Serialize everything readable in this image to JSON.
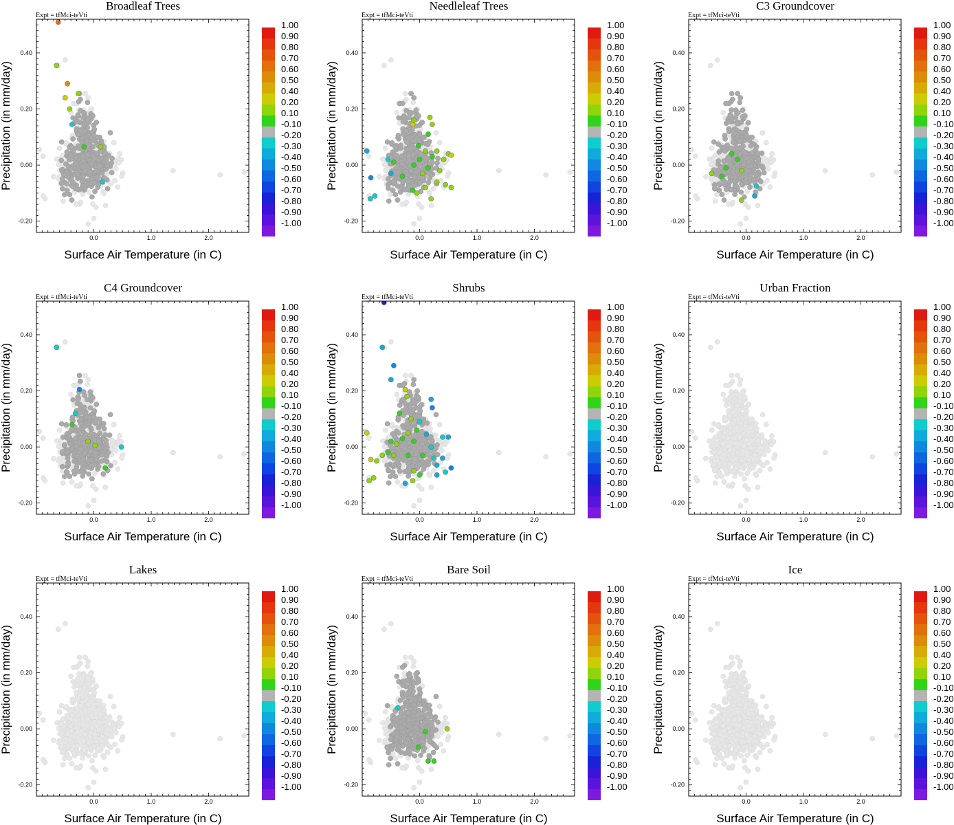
{
  "figure": {
    "expt_label": "Expt = tfMci-teVti",
    "colorbar_labels": [
      "1.00",
      "0.90",
      "0.80",
      "0.70",
      "0.60",
      "0.50",
      "0.40",
      "0.20",
      "0.10",
      "-0.10",
      "-0.20",
      "-0.30",
      "-0.40",
      "-0.50",
      "-0.60",
      "-0.70",
      "-0.80",
      "-0.90",
      "-1.00"
    ],
    "colorbar_colors": [
      "#e01a10",
      "#e6360e",
      "#e4520c",
      "#e2700c",
      "#dc8c08",
      "#d8ab04",
      "#cccc04",
      "#90d40c",
      "#30d418",
      "#b4b4b4",
      "#10cccc",
      "#10aadc",
      "#1088e0",
      "#1066e0",
      "#1044e0",
      "#1a22d8",
      "#3a14d8",
      "#5a14dc",
      "#7e1ae0"
    ],
    "background_color": "#e6e6e6",
    "neutral_color": "#aaaaaa"
  },
  "chart_data": [
    {
      "type": "scatter",
      "title": "Broadleaf Trees",
      "xlabel": "Surface Air Temperature (in C)",
      "ylabel": "Precipitation (in mm/day)",
      "xticks": [
        "0.0",
        "1.0",
        "2.0"
      ],
      "yticks": [
        "0.40",
        "0.20",
        "0.00",
        "-0.20"
      ],
      "xlim": [
        -1.0,
        2.7
      ],
      "ylim": [
        -0.24,
        0.52
      ],
      "neutral_points": 180,
      "points": [
        {
          "x": -0.62,
          "y": 0.51,
          "c": 0.7
        },
        {
          "x": -0.65,
          "y": 0.355,
          "c": 0.3
        },
        {
          "x": -0.46,
          "y": 0.29,
          "c": 0.6
        },
        {
          "x": -0.5,
          "y": 0.24,
          "c": 0.4
        },
        {
          "x": -0.42,
          "y": 0.2,
          "c": 0.3
        },
        {
          "x": -0.27,
          "y": 0.255,
          "c": 0.2
        },
        {
          "x": -0.38,
          "y": 0.145,
          "c": -0.2
        },
        {
          "x": -0.17,
          "y": 0.065,
          "c": 0.1
        },
        {
          "x": 0.12,
          "y": 0.065,
          "c": 0.2
        },
        {
          "x": 0.15,
          "y": -0.06,
          "c": -0.2
        }
      ]
    },
    {
      "type": "scatter",
      "title": "Needleleaf Trees",
      "xlabel": "Surface Air Temperature (in C)",
      "ylabel": "Precipitation (in mm/day)",
      "xticks": [
        "0.0",
        "1.0",
        "2.0"
      ],
      "yticks": [
        "0.40",
        "0.20",
        "0.00",
        "-0.20"
      ],
      "xlim": [
        -1.0,
        2.7
      ],
      "ylim": [
        -0.24,
        0.52
      ],
      "neutral_points": 180,
      "points": [
        {
          "x": -0.92,
          "y": 0.05,
          "c": -0.3
        },
        {
          "x": -0.85,
          "y": -0.045,
          "c": -0.4
        },
        {
          "x": -0.78,
          "y": -0.11,
          "c": -0.2
        },
        {
          "x": -0.86,
          "y": -0.12,
          "c": -0.2
        },
        {
          "x": -0.55,
          "y": 0.02,
          "c": -0.2
        },
        {
          "x": -0.5,
          "y": -0.03,
          "c": -0.3
        },
        {
          "x": -0.45,
          "y": 0.01,
          "c": 0.1
        },
        {
          "x": -0.12,
          "y": 0.145,
          "c": 0.4
        },
        {
          "x": -0.1,
          "y": 0.16,
          "c": 0.3
        },
        {
          "x": 0.18,
          "y": 0.17,
          "c": 0.3
        },
        {
          "x": 0.22,
          "y": 0.145,
          "c": 0.2
        },
        {
          "x": 0.15,
          "y": 0.11,
          "c": 0.1
        },
        {
          "x": -0.02,
          "y": 0.07,
          "c": 0.1
        },
        {
          "x": 0.1,
          "y": 0.05,
          "c": 0.2
        },
        {
          "x": 0.3,
          "y": 0.05,
          "c": 0.2
        },
        {
          "x": -0.1,
          "y": 0.0,
          "c": 0.1
        },
        {
          "x": 0.0,
          "y": 0.02,
          "c": 0.1
        },
        {
          "x": 0.05,
          "y": -0.03,
          "c": 0.2
        },
        {
          "x": 0.15,
          "y": -0.01,
          "c": 0.1
        },
        {
          "x": 0.22,
          "y": 0.03,
          "c": 0.1
        },
        {
          "x": 0.35,
          "y": -0.02,
          "c": 0.2
        },
        {
          "x": 0.42,
          "y": 0.02,
          "c": 0.3
        },
        {
          "x": 0.5,
          "y": 0.04,
          "c": 0.3
        },
        {
          "x": 0.55,
          "y": 0.035,
          "c": 0.4
        },
        {
          "x": 0.3,
          "y": -0.06,
          "c": 0.2
        },
        {
          "x": 0.45,
          "y": -0.07,
          "c": 0.3
        },
        {
          "x": 0.55,
          "y": -0.08,
          "c": 0.3
        },
        {
          "x": 0.1,
          "y": -0.08,
          "c": 0.2
        },
        {
          "x": -0.05,
          "y": -0.1,
          "c": 0.2
        },
        {
          "x": -0.12,
          "y": -0.09,
          "c": 0.1
        },
        {
          "x": 0.2,
          "y": -0.12,
          "c": 0.2
        },
        {
          "x": -0.3,
          "y": -0.04,
          "c": 0.1
        }
      ]
    },
    {
      "type": "scatter",
      "title": "C3 Groundcover",
      "xlabel": "Surface Air Temperature (in C)",
      "ylabel": "Precipitation (in mm/day)",
      "xticks": [
        "0.0",
        "1.0",
        "2.0"
      ],
      "yticks": [
        "0.40",
        "0.20",
        "0.00",
        "-0.20"
      ],
      "xlim": [
        -1.0,
        2.7
      ],
      "ylim": [
        -0.24,
        0.52
      ],
      "neutral_points": 180,
      "points": [
        {
          "x": -0.25,
          "y": 0.04,
          "c": 0.1
        },
        {
          "x": -0.15,
          "y": 0.02,
          "c": 0.1
        },
        {
          "x": -0.35,
          "y": -0.01,
          "c": 0.1
        },
        {
          "x": -0.08,
          "y": -0.02,
          "c": 0.2
        },
        {
          "x": -0.42,
          "y": -0.04,
          "c": 0.1
        },
        {
          "x": -0.6,
          "y": -0.03,
          "c": 0.3
        },
        {
          "x": 0.18,
          "y": -0.075,
          "c": -0.2
        },
        {
          "x": 0.15,
          "y": -0.11,
          "c": -0.3
        },
        {
          "x": -0.08,
          "y": -0.125,
          "c": 0.2
        }
      ]
    },
    {
      "type": "scatter",
      "title": "C4 Groundcover",
      "xlabel": "Surface Air Temperature (in C)",
      "ylabel": "Precipitation (in mm/day)",
      "xticks": [
        "0.0",
        "1.0",
        "2.0"
      ],
      "yticks": [
        "0.40",
        "0.20",
        "0.00",
        "-0.20"
      ],
      "xlim": [
        -1.0,
        2.7
      ],
      "ylim": [
        -0.24,
        0.52
      ],
      "neutral_points": 180,
      "points": [
        {
          "x": -0.65,
          "y": 0.355,
          "c": -0.2
        },
        {
          "x": -0.25,
          "y": 0.205,
          "c": -0.4
        },
        {
          "x": -0.32,
          "y": 0.12,
          "c": -0.2
        },
        {
          "x": -0.38,
          "y": 0.08,
          "c": 0.1
        },
        {
          "x": -0.1,
          "y": 0.02,
          "c": 0.3
        },
        {
          "x": 0.02,
          "y": 0.005,
          "c": 0.2
        },
        {
          "x": 0.48,
          "y": 0.0,
          "c": -0.2
        },
        {
          "x": 0.2,
          "y": -0.075,
          "c": 0.1
        }
      ]
    },
    {
      "type": "scatter",
      "title": "Shrubs",
      "xlabel": "Surface Air Temperature (in C)",
      "ylabel": "Precipitation (in mm/day)",
      "xticks": [
        "0.0",
        "1.0",
        "2.0"
      ],
      "yticks": [
        "0.40",
        "0.20",
        "0.00",
        "-0.20"
      ],
      "xlim": [
        -1.0,
        2.7
      ],
      "ylim": [
        -0.24,
        0.52
      ],
      "neutral_points": 180,
      "points": [
        {
          "x": -0.62,
          "y": 0.515,
          "c": -0.7
        },
        {
          "x": -0.65,
          "y": 0.355,
          "c": -0.3
        },
        {
          "x": -0.45,
          "y": 0.29,
          "c": -0.4
        },
        {
          "x": -0.5,
          "y": 0.24,
          "c": -0.3
        },
        {
          "x": -0.25,
          "y": 0.205,
          "c": 0.4
        },
        {
          "x": -0.22,
          "y": 0.18,
          "c": 0.3
        },
        {
          "x": 0.2,
          "y": 0.17,
          "c": -0.3
        },
        {
          "x": 0.22,
          "y": 0.14,
          "c": -0.4
        },
        {
          "x": -0.35,
          "y": 0.12,
          "c": 0.1
        },
        {
          "x": -0.15,
          "y": 0.1,
          "c": 0.2
        },
        {
          "x": 0.0,
          "y": 0.09,
          "c": -0.2
        },
        {
          "x": -0.05,
          "y": 0.06,
          "c": 0.1
        },
        {
          "x": -0.2,
          "y": 0.05,
          "c": 0.2
        },
        {
          "x": 0.12,
          "y": 0.045,
          "c": -0.3
        },
        {
          "x": 0.4,
          "y": 0.035,
          "c": -0.2
        },
        {
          "x": 0.5,
          "y": 0.035,
          "c": -0.3
        },
        {
          "x": -0.3,
          "y": 0.03,
          "c": 0.1
        },
        {
          "x": -0.1,
          "y": 0.02,
          "c": 0.1
        },
        {
          "x": -0.5,
          "y": 0.02,
          "c": 0.1
        },
        {
          "x": -0.4,
          "y": 0.01,
          "c": 0.2
        },
        {
          "x": 0.2,
          "y": 0.0,
          "c": -0.2
        },
        {
          "x": -0.55,
          "y": -0.02,
          "c": 0.1
        },
        {
          "x": -0.45,
          "y": -0.03,
          "c": 0.3
        },
        {
          "x": -0.2,
          "y": -0.03,
          "c": 0.1
        },
        {
          "x": 0.05,
          "y": -0.03,
          "c": 0.1
        },
        {
          "x": 0.25,
          "y": -0.04,
          "c": -0.2
        },
        {
          "x": 0.4,
          "y": -0.04,
          "c": -0.3
        },
        {
          "x": -0.65,
          "y": -0.03,
          "c": 0.2
        },
        {
          "x": -0.75,
          "y": -0.05,
          "c": 0.3
        },
        {
          "x": -0.85,
          "y": -0.045,
          "c": 0.4
        },
        {
          "x": -0.92,
          "y": 0.05,
          "c": 0.4
        },
        {
          "x": 0.3,
          "y": -0.065,
          "c": -0.3
        },
        {
          "x": 0.55,
          "y": -0.075,
          "c": -0.4
        },
        {
          "x": 0.45,
          "y": -0.09,
          "c": -0.2
        },
        {
          "x": -0.8,
          "y": -0.11,
          "c": 0.2
        },
        {
          "x": -0.88,
          "y": -0.12,
          "c": 0.2
        },
        {
          "x": -0.1,
          "y": -0.085,
          "c": 0.2
        },
        {
          "x": 0.0,
          "y": -0.1,
          "c": 0.1
        },
        {
          "x": -0.12,
          "y": -0.12,
          "c": 0.2
        },
        {
          "x": 0.3,
          "y": -0.1,
          "c": -0.3
        },
        {
          "x": -0.25,
          "y": -0.13,
          "c": -0.3
        }
      ]
    },
    {
      "type": "scatter",
      "title": "Urban Fraction",
      "xlabel": "Surface Air Temperature (in C)",
      "ylabel": "Precipitation (in mm/day)",
      "xticks": [
        "0.0",
        "1.0",
        "2.0"
      ],
      "yticks": [
        "0.40",
        "0.20",
        "0.00",
        "-0.20"
      ],
      "xlim": [
        -1.0,
        2.7
      ],
      "ylim": [
        -0.24,
        0.52
      ],
      "neutral_points": 0,
      "points": []
    },
    {
      "type": "scatter",
      "title": "Lakes",
      "xlabel": "Surface Air Temperature (in C)",
      "ylabel": "Precipitation (in mm/day)",
      "xticks": [
        "0.0",
        "1.0",
        "2.0"
      ],
      "yticks": [
        "0.40",
        "0.20",
        "0.00",
        "-0.20"
      ],
      "xlim": [
        -1.0,
        2.7
      ],
      "ylim": [
        -0.24,
        0.52
      ],
      "neutral_points": 0,
      "points": []
    },
    {
      "type": "scatter",
      "title": "Bare Soil",
      "xlabel": "Surface Air Temperature (in C)",
      "ylabel": "Precipitation (in mm/day)",
      "xticks": [
        "0.0",
        "1.0",
        "2.0"
      ],
      "yticks": [
        "0.40",
        "0.20",
        "0.00",
        "-0.20"
      ],
      "xlim": [
        -1.0,
        2.7
      ],
      "ylim": [
        -0.24,
        0.52
      ],
      "neutral_points": 140,
      "points": [
        {
          "x": -0.38,
          "y": 0.075,
          "c": -0.2
        },
        {
          "x": 0.48,
          "y": 0.0,
          "c": 0.2
        },
        {
          "x": 0.1,
          "y": -0.01,
          "c": 0.1
        },
        {
          "x": -0.02,
          "y": -0.065,
          "c": 0.1
        },
        {
          "x": 0.15,
          "y": -0.115,
          "c": 0.1
        },
        {
          "x": 0.25,
          "y": -0.115,
          "c": 0.1
        }
      ]
    },
    {
      "type": "scatter",
      "title": "Ice",
      "xlabel": "Surface Air Temperature (in C)",
      "ylabel": "Precipitation (in mm/day)",
      "xticks": [
        "0.0",
        "1.0",
        "2.0"
      ],
      "yticks": [
        "0.40",
        "0.20",
        "0.00",
        "-0.20"
      ],
      "xlim": [
        -1.0,
        2.7
      ],
      "ylim": [
        -0.24,
        0.52
      ],
      "neutral_points": 0,
      "points": []
    }
  ]
}
